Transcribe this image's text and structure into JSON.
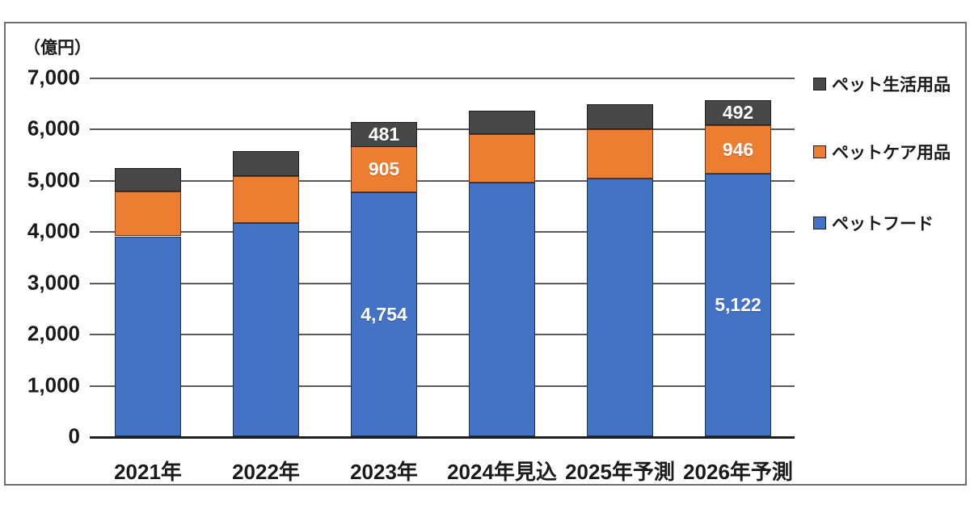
{
  "chart_data": {
    "type": "bar",
    "variant": "stacked",
    "unit_label": "（億円）",
    "categories": [
      "2021年",
      "2022年",
      "2023年",
      "2024年見込",
      "2025年予測",
      "2026年予測"
    ],
    "series": [
      {
        "name": "ペットフード",
        "color": "#4472c4",
        "values": [
          3900,
          4165,
          4754,
          4955,
          5030,
          5122
        ],
        "labels": [
          "",
          "",
          "4,754",
          "",
          "",
          "5,122"
        ]
      },
      {
        "name": "ペットケア用品",
        "color": "#ed7d31",
        "values": [
          870,
          915,
          905,
          945,
          960,
          946
        ],
        "labels": [
          "",
          "",
          "905",
          "",
          "",
          "946"
        ]
      },
      {
        "name": "ペット生活用品",
        "color": "#474747",
        "values": [
          460,
          490,
          481,
          460,
          495,
          492
        ],
        "labels": [
          "",
          "",
          "481",
          "",
          "",
          "492"
        ]
      }
    ],
    "totals_estimated": [
      5230,
      5570,
      6140,
      6360,
      6485,
      6560
    ],
    "ylim": [
      0,
      7000
    ],
    "ytick_step": 1000,
    "yticks": [
      "7,000",
      "6,000",
      "5,000",
      "4,000",
      "3,000",
      "2,000",
      "1,000",
      "0"
    ],
    "grid": true,
    "legend_position": "right",
    "legend": [
      {
        "label": "ペット生活用品",
        "color": "#474747"
      },
      {
        "label": "ペットケア用品",
        "color": "#ed7d31"
      },
      {
        "label": "ペットフード",
        "color": "#4472c4"
      }
    ],
    "label_text_color": "#ffffff"
  }
}
